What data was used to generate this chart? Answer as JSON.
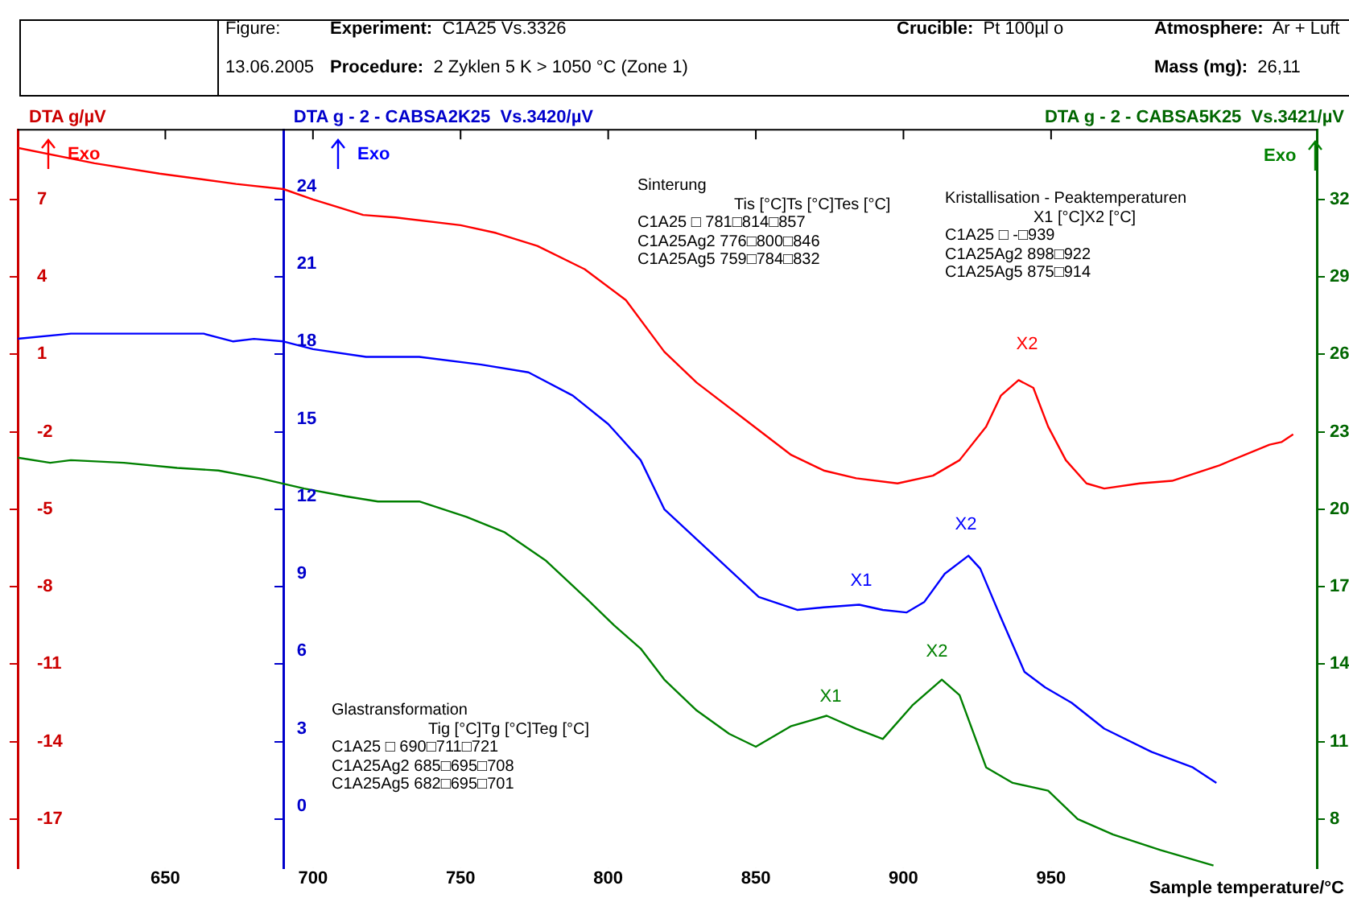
{
  "chart_data": {
    "type": "line",
    "xlabel": "Sample temperature/°C",
    "ylabel": "DTA g/µV",
    "y2label": "DTA g - 2 - CABSA2K25  Vs.3420/µV",
    "y3label": "DTA g - 2 - CABSA5K25  Vs.3421/µV",
    "xlim": [
      600,
      1040
    ],
    "xticks": [
      650,
      700,
      750,
      800,
      850,
      900,
      950
    ],
    "ylim": [
      -18.9,
      9.7
    ],
    "yticks": [
      7,
      4,
      1,
      -2,
      -5,
      -8,
      -11,
      -14,
      -17
    ],
    "y2lim": [
      -1.9,
      26.7
    ],
    "y2ticks": [
      24,
      21,
      18,
      15,
      12,
      9,
      6,
      3,
      0
    ],
    "y3lim": [
      6.1,
      34.7
    ],
    "y3ticks": [
      32,
      29,
      26,
      23,
      20,
      17,
      14,
      11,
      8
    ],
    "grid": false,
    "legend": false,
    "marker": "none",
    "line_style": "solid",
    "series": [
      {
        "color": "#ff0000",
        "x": [
          600,
          626,
          648,
          674,
          690,
          700,
          717,
          728,
          750,
          762,
          776,
          792,
          806,
          819,
          830,
          846,
          862,
          873,
          884,
          898,
          910,
          919,
          928,
          933,
          939,
          944,
          949,
          955,
          962,
          968,
          980,
          991,
          1007,
          1024,
          1028,
          1032
        ],
        "values": [
          9.0,
          8.4,
          8.0,
          7.6,
          7.4,
          7.0,
          6.4,
          6.3,
          6.0,
          5.7,
          5.2,
          4.3,
          3.1,
          1.1,
          -0.1,
          -1.5,
          -2.9,
          -3.5,
          -3.8,
          -4.0,
          -3.7,
          -3.1,
          -1.8,
          -0.6,
          0.0,
          -0.3,
          -1.8,
          -3.1,
          -4.0,
          -4.2,
          -4.0,
          -3.9,
          -3.3,
          -2.5,
          -2.4,
          -2.1
        ]
      },
      {
        "color": "#0000ff",
        "axis": "y2",
        "x": [
          600,
          618,
          636,
          663,
          673,
          680,
          690,
          700,
          718,
          736,
          757,
          773,
          788,
          800,
          811,
          819,
          835,
          851,
          864,
          873,
          885,
          893,
          901,
          907,
          914,
          922,
          926,
          933,
          941,
          948,
          957,
          968,
          984,
          998,
          1006
        ],
        "values": [
          18.6,
          18.8,
          18.8,
          18.8,
          18.5,
          18.6,
          18.5,
          18.2,
          17.9,
          17.9,
          17.6,
          17.3,
          16.4,
          15.3,
          13.9,
          12.0,
          10.3,
          8.6,
          8.1,
          8.2,
          8.3,
          8.1,
          8.0,
          8.4,
          9.5,
          10.2,
          9.7,
          7.8,
          5.7,
          5.1,
          4.5,
          3.5,
          2.6,
          2.0,
          1.4
        ]
      },
      {
        "color": "#008000",
        "axis": "y3",
        "x": [
          600,
          611,
          618,
          636,
          654,
          668,
          682,
          697,
          711,
          722,
          736,
          752,
          765,
          779,
          793,
          802,
          811,
          819,
          830,
          841,
          850,
          862,
          874,
          884,
          893,
          903,
          913,
          919,
          928,
          937,
          949,
          959,
          971,
          987,
          1005
        ],
        "values": [
          22.0,
          21.8,
          21.9,
          21.8,
          21.6,
          21.5,
          21.2,
          20.8,
          20.5,
          20.3,
          20.3,
          19.7,
          19.1,
          18.0,
          16.5,
          15.5,
          14.6,
          13.4,
          12.2,
          11.3,
          10.8,
          11.6,
          12.0,
          11.5,
          11.1,
          12.4,
          13.4,
          12.8,
          10.0,
          9.4,
          9.1,
          8.0,
          7.4,
          6.8,
          6.2
        ]
      }
    ],
    "annotations": [
      "Figure:",
      "13.06.2005",
      "Experiment: C1A25 Vs.3326",
      "Procedure: 2 Zyklen 5 K > 1050 °C (Zone 1)",
      "Crucible: Pt 100µl o",
      "Atmosphere: Ar + Luft",
      "Mass (mg): 26,11",
      "Sinterung\nTis [°C]Ts [°C]Tes [°C]\nC1A25 □ 781□814□857\nC1A25Ag2 776□800□846\nC1A25Ag5 759□784□832",
      "Kristallisation - Peaktemperaturen\nX1 [°C]X2 [°C]\nC1A25 □ -□939\nC1A25Ag2 898□922\nC1A25Ag5 875□914",
      "Glastransformation\nTig [°C]Tg [°C]Teg [°C]\nC1A25 □ 690□711□721\nC1A25Ag2 685□695□708\nC1A25Ag5 682□695□701",
      "Exo",
      "Exo",
      "Exo",
      "X2",
      "X1",
      "X2",
      "X1",
      "X2"
    ]
  }
}
